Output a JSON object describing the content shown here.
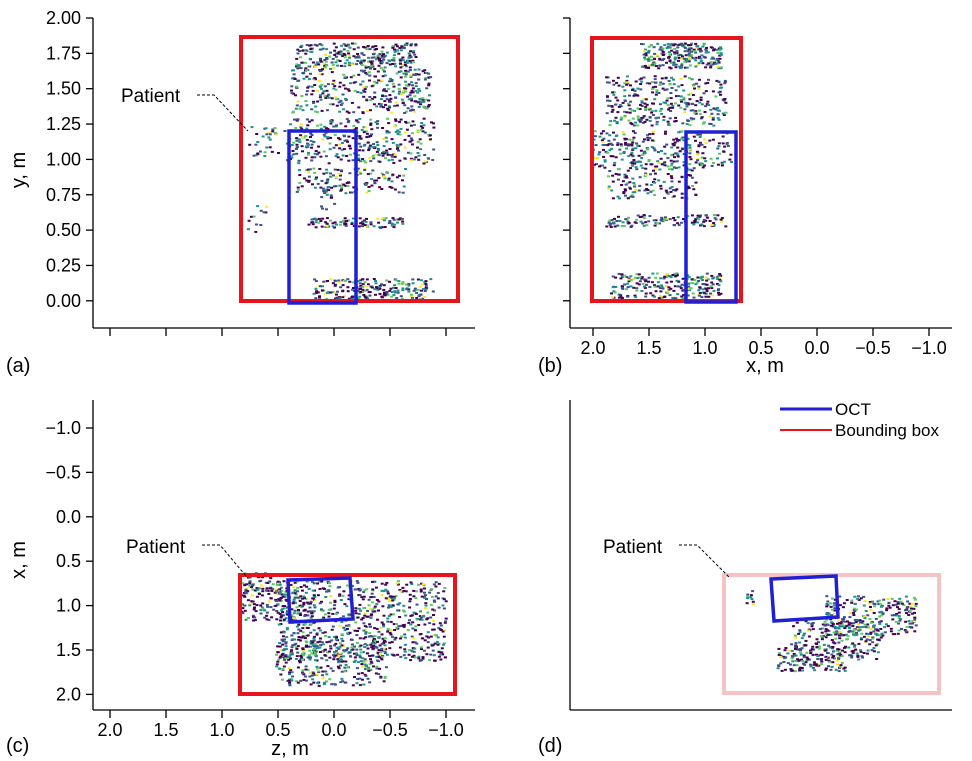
{
  "chart_data": [
    {
      "panel": "(a)",
      "type": "scatter",
      "xlabel": "",
      "ylabel": "y, m",
      "ylim": [
        -0.1,
        2.0
      ],
      "yticks": [
        "0.00",
        "0.25",
        "0.50",
        "0.75",
        "1.00",
        "1.25",
        "1.50",
        "1.75",
        "2.00"
      ],
      "annotation": "Patient",
      "bounding_box": {
        "series": "Bounding box",
        "x_extent": "full width of panel"
      },
      "oct_box_y": [
        0.0,
        1.17
      ],
      "bounding_box_y": [
        0.0,
        1.84
      ],
      "point_rows_y": [
        1.75,
        1.4,
        1.05,
        0.55,
        0.05
      ]
    },
    {
      "panel": "(b)",
      "type": "scatter",
      "xlabel": "x, m",
      "ylabel": "",
      "xlim": [
        2.15,
        -1.25
      ],
      "xticks": [
        "2.0",
        "1.5",
        "1.0",
        "0.5",
        "0.0",
        "−0.5",
        "−1.0"
      ],
      "oct_box": {
        "x": [
          1.18,
          0.72
        ],
        "y": [
          0.0,
          1.17
        ]
      },
      "bounding_box": {
        "x": [
          2.03,
          0.68
        ],
        "y": [
          0.0,
          1.84
        ]
      }
    },
    {
      "panel": "(c)",
      "type": "scatter",
      "xlabel": "z, m",
      "ylabel": "x, m",
      "xlim": [
        2.25,
        -1.3
      ],
      "ylim": [
        2.15,
        -1.35
      ],
      "xticks": [
        "2.0",
        "1.5",
        "1.0",
        "0.5",
        "0.0",
        "−0.5",
        "−1.0"
      ],
      "yticks": [
        "−1.0",
        "−0.5",
        "0.0",
        "0.5",
        "1.0",
        "1.5",
        "2.0"
      ],
      "annotation": "Patient",
      "bounding_box": {
        "x": [
          0.82,
          -1.12
        ],
        "y": [
          0.65,
          2.0
        ]
      },
      "oct_box": {
        "x": [
          0.4,
          -0.2
        ],
        "y": [
          0.72,
          1.14
        ]
      }
    },
    {
      "panel": "(d)",
      "type": "scatter",
      "annotation": "Patient",
      "legend": [
        {
          "name": "OCT",
          "color": "#1f1fd6"
        },
        {
          "name": "Bounding box",
          "color": "#e8141b"
        }
      ],
      "legend_placement": "top-right"
    }
  ],
  "colors": {
    "oct": "#1f1fd6",
    "bounding_box": "#e8141b",
    "bounding_box_faded": "#f6c3c5",
    "viridis": [
      "#440154",
      "#3b528b",
      "#21918c",
      "#5ec962",
      "#fde725"
    ]
  }
}
